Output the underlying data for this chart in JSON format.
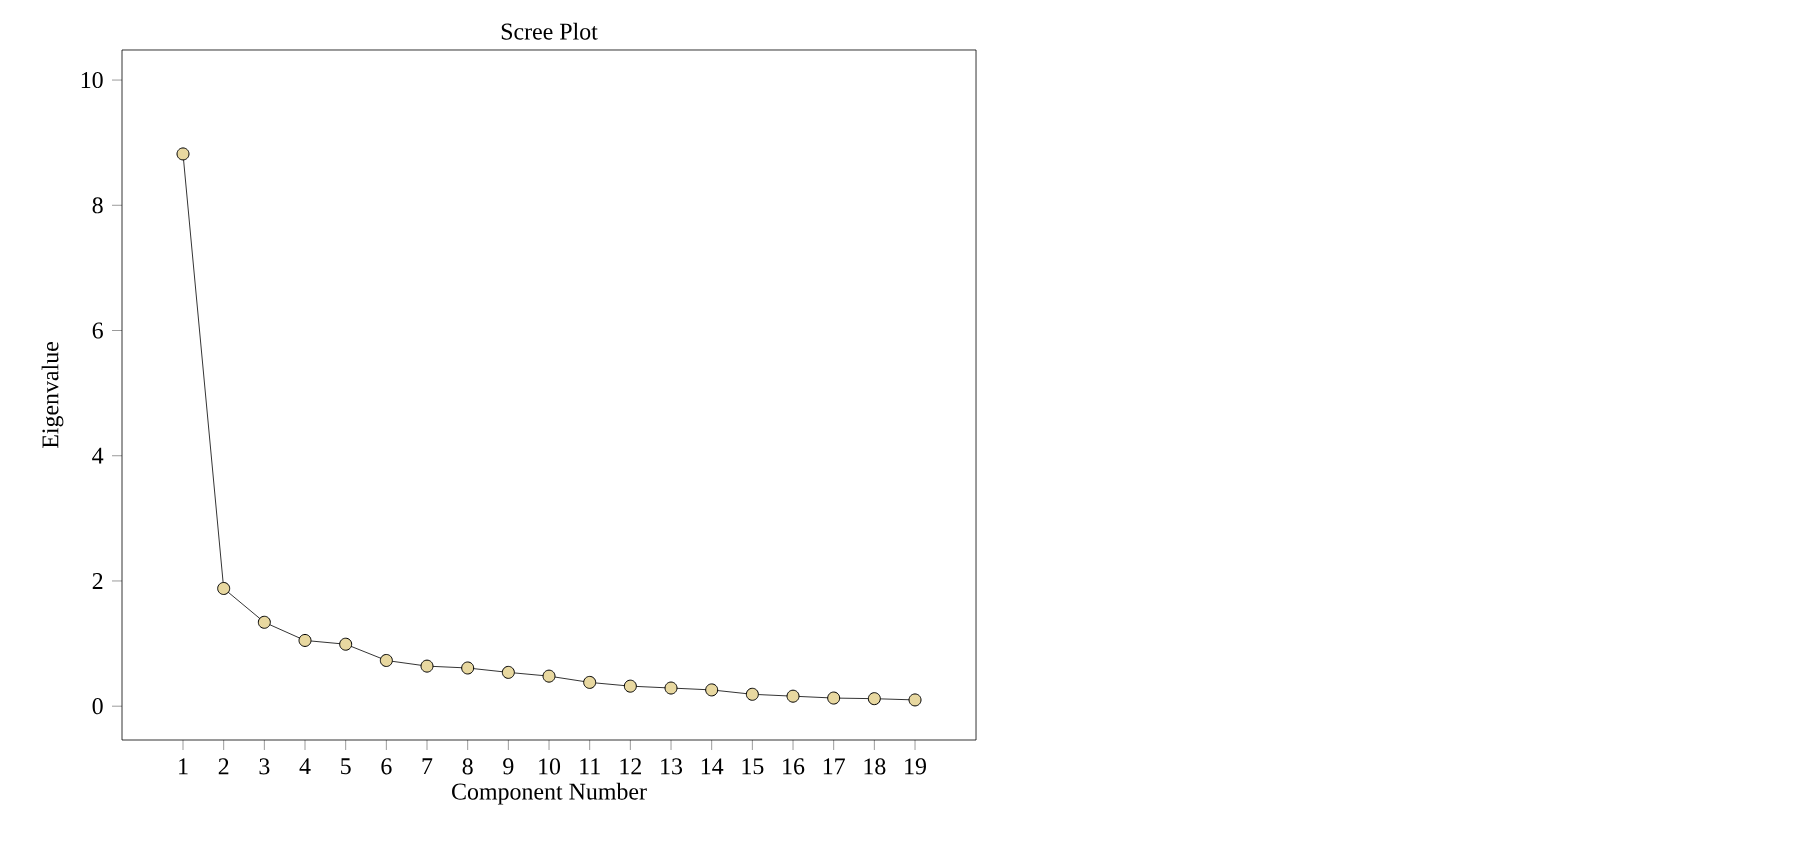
{
  "chart_data": {
    "type": "line",
    "title": "Scree Plot",
    "xlabel": "Component Number",
    "ylabel": "Eigenvalue",
    "x": [
      1,
      2,
      3,
      4,
      5,
      6,
      7,
      8,
      9,
      10,
      11,
      12,
      13,
      14,
      15,
      16,
      17,
      18,
      19
    ],
    "series": [
      {
        "color": "#e8d8a0",
        "values": [
          8.82,
          1.88,
          1.34,
          1.05,
          0.99,
          0.73,
          0.64,
          0.61,
          0.54,
          0.48,
          0.38,
          0.32,
          0.29,
          0.26,
          0.19,
          0.16,
          0.13,
          0.12,
          0.1
        ]
      }
    ],
    "xlim": [
      -0.5,
      20.5
    ],
    "xticks": [
      1,
      2,
      3,
      4,
      5,
      6,
      7,
      8,
      9,
      10,
      11,
      12,
      13,
      14,
      15,
      16,
      17,
      18,
      19
    ],
    "ylim": [
      -0.54,
      10.48
    ],
    "yticks": [
      0,
      2,
      4,
      6,
      8,
      10
    ],
    "marker": "circle",
    "line_style": "solid"
  }
}
